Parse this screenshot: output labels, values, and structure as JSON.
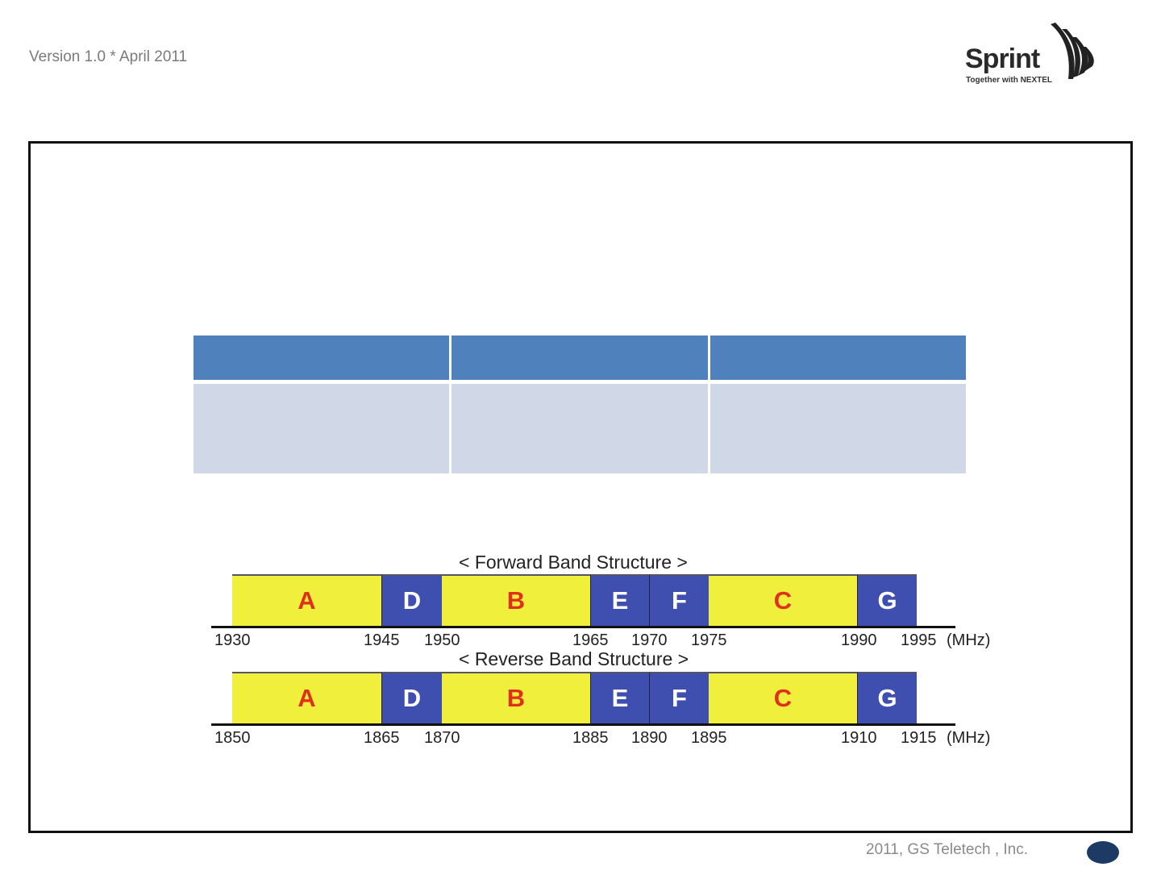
{
  "header": {
    "version": "Version 1.0 * April 2011",
    "logo_text": "Sprint",
    "logo_tagline": "Together with NEXTEL"
  },
  "footer": {
    "copyright": "2011, GS Teletech , Inc."
  },
  "colors": {
    "table_header": "#4f81bd",
    "table_body": "#d0d8e8",
    "band_licensed": "#f0f03c",
    "band_small": "#3f4fb0",
    "label_red": "#e0301c"
  },
  "table": {
    "columns": 3,
    "header": [
      "",
      "",
      ""
    ],
    "row": [
      "",
      "",
      ""
    ]
  },
  "bands": {
    "labels": [
      "A",
      "D",
      "B",
      "E",
      "F",
      "C",
      "G"
    ],
    "types": [
      "yellow",
      "blue",
      "yellow",
      "blue",
      "blue",
      "yellow",
      "blue"
    ],
    "forward": {
      "title": "< Forward Band Structure >",
      "ticks": [
        "1930",
        "1945",
        "1950",
        "1965",
        "1970",
        "1975",
        "1990",
        "1995"
      ],
      "unit": "(MHz)"
    },
    "reverse": {
      "title": "< Reverse Band Structure >",
      "ticks": [
        "1850",
        "1865",
        "1870",
        "1885",
        "1890",
        "1895",
        "1910",
        "1915"
      ],
      "unit": "(MHz)"
    }
  }
}
